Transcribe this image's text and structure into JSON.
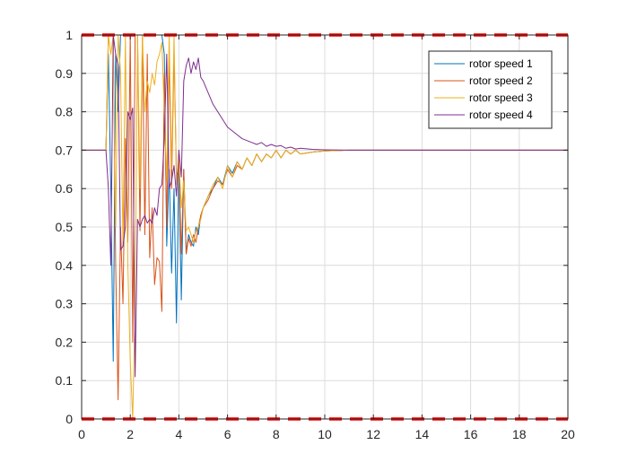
{
  "chart_data": {
    "type": "line",
    "title": "",
    "xlabel": "",
    "ylabel": "",
    "xlim": [
      0,
      20
    ],
    "ylim": [
      0,
      1
    ],
    "xticks": [
      0,
      2,
      4,
      6,
      8,
      10,
      12,
      14,
      16,
      18,
      20
    ],
    "xtick_labels": [
      "0",
      "2",
      "4",
      "6",
      "8",
      "10",
      "12",
      "14",
      "16",
      "18",
      "20"
    ],
    "yticks": [
      0,
      0.1,
      0.2,
      0.3,
      0.4,
      0.5,
      0.6,
      0.7,
      0.8,
      0.9,
      1
    ],
    "ytick_labels": [
      "0",
      "0.1",
      "0.2",
      "0.3",
      "0.4",
      "0.5",
      "0.6",
      "0.7",
      "0.8",
      "0.9",
      "1"
    ],
    "grid": true,
    "legend_position": "top-right",
    "limit_lines": [
      {
        "y": 1,
        "color": "#ff0000",
        "style": "dashed"
      },
      {
        "y": 0,
        "color": "#ff0000",
        "style": "dashed"
      }
    ],
    "series": [
      {
        "name": "rotor speed 1",
        "color": "#0072bd",
        "x": [
          0,
          1.0,
          1.1,
          1.2,
          1.3,
          1.4,
          1.5,
          1.6,
          1.7,
          1.8,
          1.9,
          2.0,
          2.1,
          2.2,
          2.3,
          2.4,
          2.5,
          2.6,
          2.7,
          2.8,
          2.9,
          3.0,
          3.1,
          3.2,
          3.3,
          3.4,
          3.5,
          3.6,
          3.7,
          3.8,
          3.9,
          4.0,
          4.1,
          4.2,
          4.3,
          4.4,
          4.5,
          4.6,
          4.7,
          4.8,
          4.9,
          5.0,
          5.2,
          5.4,
          5.6,
          5.8,
          6.0,
          6.2,
          6.4,
          6.6,
          6.8,
          7.0,
          7.2,
          7.4,
          7.6,
          7.8,
          8.0,
          8.2,
          8.4,
          8.6,
          8.8,
          9.0,
          9.5,
          10.0,
          11.0,
          12.0,
          13.0,
          14.0,
          16.0,
          18.0,
          20.0
        ],
        "values": [
          0.7,
          0.7,
          0.95,
          0.6,
          0.15,
          0.95,
          0.8,
          1.0,
          1.0,
          1.0,
          1.0,
          1.0,
          1.0,
          1.0,
          1.0,
          1.0,
          1.0,
          1.0,
          1.0,
          1.0,
          1.0,
          1.0,
          1.0,
          1.0,
          1.0,
          0.95,
          0.45,
          0.65,
          0.38,
          0.6,
          0.25,
          0.67,
          0.31,
          0.65,
          0.43,
          0.48,
          0.46,
          0.45,
          0.5,
          0.48,
          0.53,
          0.55,
          0.58,
          0.6,
          0.63,
          0.61,
          0.66,
          0.64,
          0.67,
          0.65,
          0.68,
          0.66,
          0.69,
          0.67,
          0.69,
          0.68,
          0.7,
          0.68,
          0.7,
          0.69,
          0.7,
          0.69,
          0.695,
          0.698,
          0.7,
          0.7,
          0.7,
          0.7,
          0.7,
          0.7,
          0.7
        ]
      },
      {
        "name": "rotor speed 2",
        "color": "#d95319",
        "x": [
          0,
          1.0,
          1.1,
          1.2,
          1.3,
          1.4,
          1.5,
          1.6,
          1.7,
          1.8,
          1.9,
          2.0,
          2.1,
          2.2,
          2.3,
          2.4,
          2.5,
          2.6,
          2.7,
          2.8,
          2.9,
          3.0,
          3.1,
          3.2,
          3.3,
          3.4,
          3.5,
          3.6,
          3.7,
          3.8,
          3.9,
          4.0,
          4.1,
          4.2,
          4.3,
          4.4,
          4.5,
          4.6,
          4.7,
          4.8,
          4.9,
          5.0,
          5.2,
          5.4,
          5.6,
          5.8,
          6.0,
          6.2,
          6.4,
          6.6,
          6.8,
          7.0,
          7.2,
          7.4,
          7.6,
          7.8,
          8.0,
          8.2,
          8.4,
          8.6,
          8.8,
          9.0,
          9.5,
          10.0,
          11.0,
          12.0,
          13.0,
          14.0,
          16.0,
          18.0,
          20.0
        ],
        "values": [
          0.7,
          0.7,
          1.0,
          1.0,
          1.0,
          0.4,
          0.05,
          0.5,
          0.3,
          0.73,
          0.46,
          1.0,
          0.2,
          1.0,
          1.0,
          0.49,
          1.0,
          0.48,
          0.95,
          0.42,
          0.55,
          0.35,
          0.42,
          0.41,
          0.28,
          0.9,
          0.5,
          0.95,
          0.6,
          0.96,
          0.63,
          0.66,
          0.43,
          0.65,
          0.43,
          0.47,
          0.45,
          0.48,
          0.46,
          0.5,
          0.53,
          0.55,
          0.57,
          0.6,
          0.62,
          0.61,
          0.65,
          0.63,
          0.66,
          0.65,
          0.68,
          0.66,
          0.69,
          0.67,
          0.69,
          0.68,
          0.7,
          0.68,
          0.7,
          0.69,
          0.7,
          0.69,
          0.695,
          0.698,
          0.7,
          0.7,
          0.7,
          0.7,
          0.7,
          0.7,
          0.7
        ]
      },
      {
        "name": "rotor speed 3",
        "color": "#edb120",
        "x": [
          0,
          1.0,
          1.1,
          1.2,
          1.3,
          1.4,
          1.5,
          1.6,
          1.7,
          1.8,
          1.9,
          2.0,
          2.1,
          2.2,
          2.3,
          2.4,
          2.5,
          2.6,
          2.7,
          2.8,
          2.9,
          3.0,
          3.1,
          3.2,
          3.3,
          3.4,
          3.5,
          3.6,
          3.7,
          3.8,
          3.9,
          4.0,
          4.1,
          4.2,
          4.3,
          4.4,
          4.5,
          4.6,
          4.7,
          4.8,
          4.9,
          5.0,
          5.2,
          5.4,
          5.6,
          5.8,
          6.0,
          6.2,
          6.4,
          6.6,
          6.8,
          7.0,
          7.2,
          7.4,
          7.6,
          7.8,
          8.0,
          8.2,
          8.4,
          8.6,
          8.8,
          9.0,
          9.5,
          10.0,
          11.0,
          12.0,
          13.0,
          14.0,
          16.0,
          18.0,
          20.0
        ],
        "values": [
          0.7,
          0.7,
          1.0,
          0.95,
          1.0,
          0.5,
          1.0,
          0.9,
          0.45,
          1.0,
          0.4,
          0.15,
          0.0,
          0.3,
          1.0,
          0.6,
          1.0,
          0.8,
          0.88,
          0.85,
          0.9,
          0.87,
          0.93,
          0.95,
          0.98,
          0.8,
          0.62,
          1.0,
          0.65,
          1.0,
          0.61,
          0.68,
          0.55,
          0.62,
          0.49,
          0.5,
          0.48,
          0.46,
          0.49,
          0.5,
          0.52,
          0.55,
          0.58,
          0.61,
          0.63,
          0.6,
          0.66,
          0.63,
          0.67,
          0.65,
          0.68,
          0.66,
          0.69,
          0.67,
          0.69,
          0.68,
          0.7,
          0.68,
          0.7,
          0.69,
          0.7,
          0.69,
          0.695,
          0.698,
          0.7,
          0.7,
          0.7,
          0.7,
          0.7,
          0.7,
          0.7
        ]
      },
      {
        "name": "rotor speed 4",
        "color": "#7e2f8e",
        "x": [
          0,
          1.0,
          1.1,
          1.2,
          1.3,
          1.4,
          1.5,
          1.6,
          1.7,
          1.8,
          1.9,
          2.0,
          2.1,
          2.2,
          2.3,
          2.4,
          2.5,
          2.6,
          2.7,
          2.8,
          2.9,
          3.0,
          3.1,
          3.2,
          3.3,
          3.4,
          3.5,
          3.6,
          3.7,
          3.8,
          3.9,
          4.0,
          4.1,
          4.2,
          4.3,
          4.4,
          4.5,
          4.6,
          4.7,
          4.8,
          4.9,
          5.0,
          5.2,
          5.4,
          5.6,
          5.8,
          6.0,
          6.2,
          6.4,
          6.6,
          6.8,
          7.0,
          7.2,
          7.4,
          7.6,
          7.8,
          8.0,
          8.2,
          8.4,
          8.6,
          8.8,
          9.0,
          9.5,
          10.0,
          11.0,
          12.0,
          13.0,
          14.0,
          16.0,
          18.0,
          20.0
        ],
        "values": [
          0.7,
          0.7,
          0.6,
          0.4,
          1.0,
          0.95,
          0.92,
          0.44,
          0.45,
          0.5,
          0.8,
          0.78,
          0.81,
          0.11,
          0.52,
          0.5,
          0.52,
          0.53,
          0.51,
          0.52,
          0.51,
          0.55,
          0.53,
          0.6,
          0.61,
          0.73,
          0.95,
          0.6,
          0.62,
          0.66,
          0.58,
          0.7,
          0.63,
          0.88,
          0.92,
          0.94,
          0.9,
          0.93,
          0.91,
          0.94,
          0.89,
          0.88,
          0.85,
          0.82,
          0.8,
          0.78,
          0.76,
          0.75,
          0.74,
          0.73,
          0.725,
          0.72,
          0.715,
          0.72,
          0.71,
          0.715,
          0.71,
          0.712,
          0.705,
          0.708,
          0.703,
          0.705,
          0.702,
          0.701,
          0.7,
          0.7,
          0.7,
          0.7,
          0.7,
          0.7,
          0.7
        ]
      }
    ]
  }
}
